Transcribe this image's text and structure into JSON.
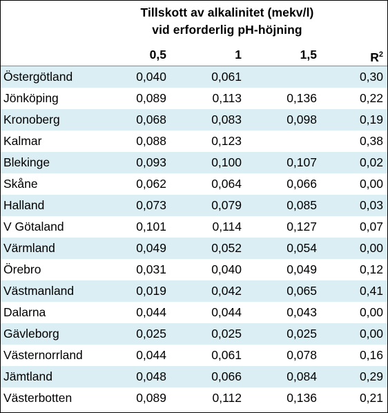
{
  "table": {
    "title_line1": "Tillskott av alkalinitet (mekv/l)",
    "title_line2": "vid erforderlig pH-höjning",
    "headers": [
      "0,5",
      "1",
      "1,5",
      "R",
      "2"
    ],
    "rows": [
      [
        "Östergötland",
        "0,040",
        "0,061",
        "",
        "0,30"
      ],
      [
        "Jönköping",
        "0,089",
        "0,113",
        "0,136",
        "0,22"
      ],
      [
        "Kronoberg",
        "0,068",
        "0,083",
        "0,098",
        "0,19"
      ],
      [
        "Kalmar",
        "0,088",
        "0,123",
        "",
        "0,38"
      ],
      [
        "Blekinge",
        "0,093",
        "0,100",
        "0,107",
        "0,02"
      ],
      [
        "Skåne",
        "0,062",
        "0,064",
        "0,066",
        "0,00"
      ],
      [
        "Halland",
        "0,073",
        "0,079",
        "0,085",
        "0,03"
      ],
      [
        "V Götaland",
        "0,101",
        "0,114",
        "0,127",
        "0,07"
      ],
      [
        "Värmland",
        "0,049",
        "0,052",
        "0,054",
        "0,00"
      ],
      [
        "Örebro",
        "0,031",
        "0,040",
        "0,049",
        "0,12"
      ],
      [
        "Västmanland",
        "0,019",
        "0,042",
        "0,065",
        "0,41"
      ],
      [
        "Dalarna",
        "0,044",
        "0,044",
        "0,043",
        "0,00"
      ],
      [
        "Gävleborg",
        "0,025",
        "0,025",
        "0,025",
        "0,00"
      ],
      [
        "Västernorrland",
        "0,044",
        "0,061",
        "0,078",
        "0,16"
      ],
      [
        "Jämtland",
        "0,048",
        "0,066",
        "0,084",
        "0,29"
      ],
      [
        "Västerbotten",
        "0,089",
        "0,112",
        "0,136",
        "0,21"
      ]
    ]
  },
  "colors": {
    "band": "#daeef3",
    "background": "#ffffff",
    "text": "#000000"
  }
}
